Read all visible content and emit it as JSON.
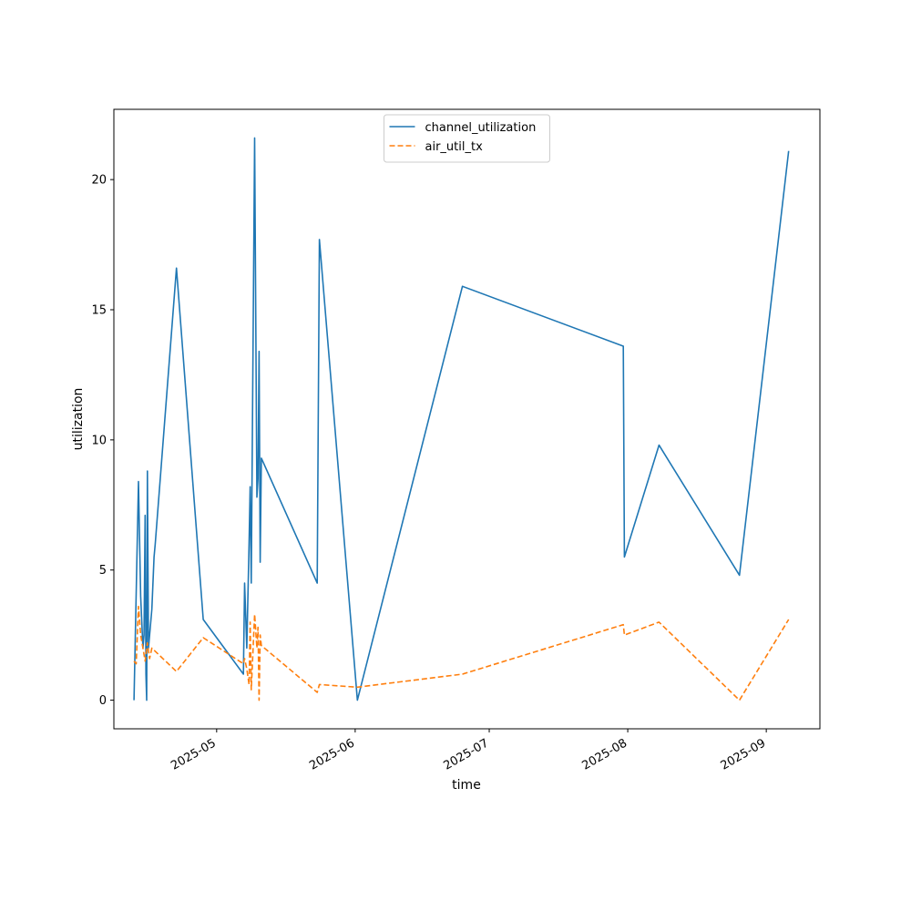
{
  "chart_data": {
    "type": "line",
    "xlabel": "time",
    "ylabel": "utilization",
    "x_tick_labels": [
      "2025-05",
      "2025-06",
      "2025-07",
      "2025-08",
      "2025-09"
    ],
    "x_ticks": [
      "2025-05-01",
      "2025-06-01",
      "2025-07-01",
      "2025-08-01",
      "2025-09-01"
    ],
    "y_ticks": [
      0,
      5,
      10,
      15,
      20
    ],
    "xlim": [
      "2025-04-08",
      "2025-09-13"
    ],
    "ylim": [
      -1.1,
      22.7
    ],
    "legend_position": "upper center",
    "grid": false,
    "series": [
      {
        "name": "channel_utilization",
        "color": "#1f77b4",
        "style": "solid",
        "points": [
          [
            "2025-04-12 12:00",
            0.0
          ],
          [
            "2025-04-13 12:00",
            8.4
          ],
          [
            "2025-04-14 00:00",
            4.0
          ],
          [
            "2025-04-14 12:00",
            2.0
          ],
          [
            "2025-04-14 18:00",
            2.5
          ],
          [
            "2025-04-15 00:00",
            7.1
          ],
          [
            "2025-04-15 04:00",
            1.0
          ],
          [
            "2025-04-15 08:00",
            0.0
          ],
          [
            "2025-04-15 12:00",
            8.8
          ],
          [
            "2025-04-15 18:00",
            2.0
          ],
          [
            "2025-04-16 12:00",
            3.5
          ],
          [
            "2025-04-17 00:00",
            5.5
          ],
          [
            "2025-04-17 06:00",
            6.0
          ],
          [
            "2025-04-22 00:00",
            16.6
          ],
          [
            "2025-04-28 00:00",
            3.1
          ],
          [
            "2025-05-07 00:00",
            1.0
          ],
          [
            "2025-05-07 06:00",
            4.5
          ],
          [
            "2025-05-07 18:00",
            2.0
          ],
          [
            "2025-05-08 06:00",
            6.0
          ],
          [
            "2025-05-08 12:00",
            8.2
          ],
          [
            "2025-05-08 18:00",
            4.5
          ],
          [
            "2025-05-09 12:00",
            21.6
          ],
          [
            "2025-05-10 00:00",
            7.8
          ],
          [
            "2025-05-10 06:00",
            8.5
          ],
          [
            "2025-05-10 12:00",
            13.4
          ],
          [
            "2025-05-10 18:00",
            5.3
          ],
          [
            "2025-05-11 00:00",
            9.3
          ],
          [
            "2025-05-23 12:00",
            4.5
          ],
          [
            "2025-05-24 00:00",
            17.7
          ],
          [
            "2025-06-01 12:00",
            0.0
          ],
          [
            "2025-06-25 00:00",
            15.9
          ],
          [
            "2025-07-31 00:00",
            13.6
          ],
          [
            "2025-07-31 06:00",
            5.5
          ],
          [
            "2025-08-08 00:00",
            9.8
          ],
          [
            "2025-08-26 00:00",
            4.8
          ],
          [
            "2025-09-06 00:00",
            21.1
          ]
        ]
      },
      {
        "name": "air_util_tx",
        "color": "#ff7f0e",
        "style": "dashed",
        "points": [
          [
            "2025-04-12 12:00",
            1.5
          ],
          [
            "2025-04-13 00:00",
            1.4
          ],
          [
            "2025-04-13 12:00",
            3.6
          ],
          [
            "2025-04-14 00:00",
            2.5
          ],
          [
            "2025-04-14 12:00",
            2.0
          ],
          [
            "2025-04-15 00:00",
            1.5
          ],
          [
            "2025-04-15 12:00",
            2.2
          ],
          [
            "2025-04-16 00:00",
            1.6
          ],
          [
            "2025-04-16 12:00",
            2.0
          ],
          [
            "2025-04-22 00:00",
            1.1
          ],
          [
            "2025-04-28 00:00",
            2.4
          ],
          [
            "2025-05-07 00:00",
            1.4
          ],
          [
            "2025-05-07 06:00",
            1.6
          ],
          [
            "2025-05-07 18:00",
            1.2
          ],
          [
            "2025-05-08 06:00",
            0.6
          ],
          [
            "2025-05-08 12:00",
            3.0
          ],
          [
            "2025-05-08 18:00",
            0.4
          ],
          [
            "2025-05-09 12:00",
            3.3
          ],
          [
            "2025-05-10 00:00",
            2.0
          ],
          [
            "2025-05-10 06:00",
            2.8
          ],
          [
            "2025-05-10 12:00",
            0.0
          ],
          [
            "2025-05-10 18:00",
            2.5
          ],
          [
            "2025-05-11 00:00",
            2.1
          ],
          [
            "2025-05-23 12:00",
            0.3
          ],
          [
            "2025-05-24 00:00",
            0.6
          ],
          [
            "2025-06-01 12:00",
            0.5
          ],
          [
            "2025-06-25 00:00",
            1.0
          ],
          [
            "2025-07-31 00:00",
            2.9
          ],
          [
            "2025-07-31 06:00",
            2.5
          ],
          [
            "2025-08-08 00:00",
            3.0
          ],
          [
            "2025-08-26 00:00",
            0.0
          ],
          [
            "2025-09-06 00:00",
            3.1
          ]
        ]
      }
    ]
  }
}
